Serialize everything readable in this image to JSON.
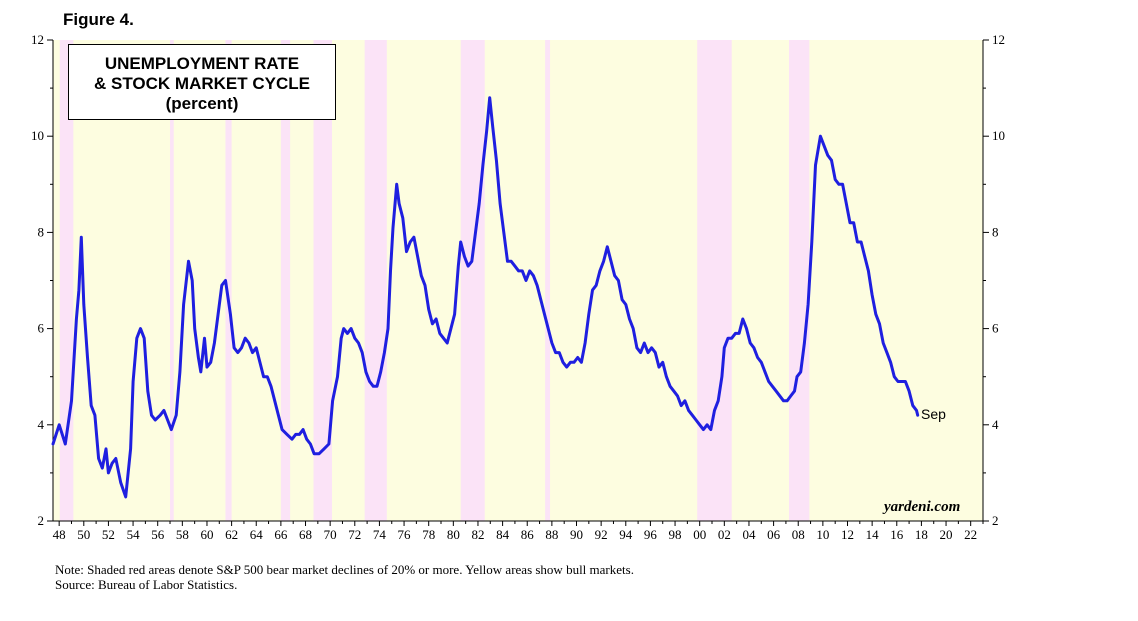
{
  "figure_label": "Figure 4.",
  "legend": {
    "line1": "UNEMPLOYMENT RATE",
    "line2": "& STOCK MARKET CYCLE",
    "line3": "(percent)"
  },
  "brand": "yardeni.com",
  "end_label": "Sep",
  "note": "Note: Shaded red areas denote S&P 500 bear market declines of 20% or more. Yellow areas show bull markets.",
  "source": "Source: Bureau of Labor Statistics.",
  "colors": {
    "line": "#1f1fe0",
    "bull": "#fdfde0",
    "bear": "#fbe3f7"
  },
  "chart_data": {
    "type": "line",
    "x_range": [
      1947.5,
      2023.0
    ],
    "ylim": [
      2,
      12
    ],
    "y_ticks": [
      2,
      4,
      6,
      8,
      10,
      12
    ],
    "x_tick_labels": [
      "48",
      "50",
      "52",
      "54",
      "56",
      "58",
      "60",
      "62",
      "64",
      "66",
      "68",
      "70",
      "72",
      "74",
      "76",
      "78",
      "80",
      "82",
      "84",
      "86",
      "88",
      "90",
      "92",
      "94",
      "96",
      "98",
      "00",
      "02",
      "04",
      "06",
      "08",
      "10",
      "12",
      "14",
      "16",
      "18",
      "20",
      "22"
    ],
    "bear_markets": [
      [
        1948.05,
        1949.15
      ],
      [
        1957.0,
        1957.3
      ],
      [
        1961.5,
        1962.0
      ],
      [
        1966.0,
        1966.75
      ],
      [
        1968.65,
        1970.15
      ],
      [
        1972.8,
        1974.6
      ],
      [
        1980.6,
        1982.55
      ],
      [
        1987.45,
        1987.85
      ],
      [
        1999.8,
        2002.6
      ],
      [
        2007.25,
        2008.9
      ]
    ],
    "series": [
      {
        "values": [
          [
            1947.5,
            3.6
          ],
          [
            1948.0,
            4.0
          ],
          [
            1948.5,
            3.6
          ],
          [
            1949.0,
            4.5
          ],
          [
            1949.4,
            6.2
          ],
          [
            1949.6,
            6.8
          ],
          [
            1949.8,
            7.9
          ],
          [
            1950.0,
            6.5
          ],
          [
            1950.3,
            5.4
          ],
          [
            1950.6,
            4.4
          ],
          [
            1950.9,
            4.2
          ],
          [
            1951.2,
            3.3
          ],
          [
            1951.5,
            3.1
          ],
          [
            1951.8,
            3.5
          ],
          [
            1952.0,
            3.0
          ],
          [
            1952.3,
            3.2
          ],
          [
            1952.6,
            3.3
          ],
          [
            1953.0,
            2.8
          ],
          [
            1953.4,
            2.5
          ],
          [
            1953.8,
            3.5
          ],
          [
            1954.0,
            4.9
          ],
          [
            1954.3,
            5.8
          ],
          [
            1954.6,
            6.0
          ],
          [
            1954.9,
            5.8
          ],
          [
            1955.2,
            4.7
          ],
          [
            1955.5,
            4.2
          ],
          [
            1955.8,
            4.1
          ],
          [
            1956.2,
            4.2
          ],
          [
            1956.5,
            4.3
          ],
          [
            1956.8,
            4.1
          ],
          [
            1957.1,
            3.9
          ],
          [
            1957.5,
            4.2
          ],
          [
            1957.8,
            5.1
          ],
          [
            1958.1,
            6.5
          ],
          [
            1958.5,
            7.4
          ],
          [
            1958.8,
            7.0
          ],
          [
            1959.0,
            6.0
          ],
          [
            1959.3,
            5.4
          ],
          [
            1959.5,
            5.1
          ],
          [
            1959.8,
            5.8
          ],
          [
            1960.0,
            5.2
          ],
          [
            1960.3,
            5.3
          ],
          [
            1960.6,
            5.7
          ],
          [
            1960.9,
            6.3
          ],
          [
            1961.2,
            6.9
          ],
          [
            1961.5,
            7.0
          ],
          [
            1961.9,
            6.3
          ],
          [
            1962.2,
            5.6
          ],
          [
            1962.5,
            5.5
          ],
          [
            1962.8,
            5.6
          ],
          [
            1963.1,
            5.8
          ],
          [
            1963.4,
            5.7
          ],
          [
            1963.7,
            5.5
          ],
          [
            1964.0,
            5.6
          ],
          [
            1964.3,
            5.3
          ],
          [
            1964.6,
            5.0
          ],
          [
            1964.9,
            5.0
          ],
          [
            1965.2,
            4.8
          ],
          [
            1965.5,
            4.5
          ],
          [
            1965.8,
            4.2
          ],
          [
            1966.1,
            3.9
          ],
          [
            1966.5,
            3.8
          ],
          [
            1966.9,
            3.7
          ],
          [
            1967.2,
            3.8
          ],
          [
            1967.5,
            3.8
          ],
          [
            1967.8,
            3.9
          ],
          [
            1968.1,
            3.7
          ],
          [
            1968.4,
            3.6
          ],
          [
            1968.7,
            3.4
          ],
          [
            1969.1,
            3.4
          ],
          [
            1969.5,
            3.5
          ],
          [
            1969.9,
            3.6
          ],
          [
            1970.2,
            4.5
          ],
          [
            1970.6,
            5.0
          ],
          [
            1970.9,
            5.8
          ],
          [
            1971.1,
            6.0
          ],
          [
            1971.4,
            5.9
          ],
          [
            1971.7,
            6.0
          ],
          [
            1972.0,
            5.8
          ],
          [
            1972.3,
            5.7
          ],
          [
            1972.6,
            5.5
          ],
          [
            1972.9,
            5.1
          ],
          [
            1973.2,
            4.9
          ],
          [
            1973.5,
            4.8
          ],
          [
            1973.8,
            4.8
          ],
          [
            1974.1,
            5.1
          ],
          [
            1974.4,
            5.5
          ],
          [
            1974.7,
            6.0
          ],
          [
            1974.9,
            7.2
          ],
          [
            1975.1,
            8.1
          ],
          [
            1975.4,
            9.0
          ],
          [
            1975.6,
            8.6
          ],
          [
            1975.9,
            8.3
          ],
          [
            1976.2,
            7.6
          ],
          [
            1976.5,
            7.8
          ],
          [
            1976.8,
            7.9
          ],
          [
            1977.1,
            7.5
          ],
          [
            1977.4,
            7.1
          ],
          [
            1977.7,
            6.9
          ],
          [
            1978.0,
            6.4
          ],
          [
            1978.3,
            6.1
          ],
          [
            1978.6,
            6.2
          ],
          [
            1978.9,
            5.9
          ],
          [
            1979.2,
            5.8
          ],
          [
            1979.5,
            5.7
          ],
          [
            1979.8,
            6.0
          ],
          [
            1980.1,
            6.3
          ],
          [
            1980.4,
            7.3
          ],
          [
            1980.6,
            7.8
          ],
          [
            1980.9,
            7.5
          ],
          [
            1981.2,
            7.3
          ],
          [
            1981.5,
            7.4
          ],
          [
            1981.8,
            8.0
          ],
          [
            1982.1,
            8.6
          ],
          [
            1982.4,
            9.4
          ],
          [
            1982.7,
            10.1
          ],
          [
            1982.95,
            10.8
          ],
          [
            1983.2,
            10.2
          ],
          [
            1983.5,
            9.5
          ],
          [
            1983.8,
            8.6
          ],
          [
            1984.1,
            8.0
          ],
          [
            1984.4,
            7.4
          ],
          [
            1984.7,
            7.4
          ],
          [
            1985.0,
            7.3
          ],
          [
            1985.3,
            7.2
          ],
          [
            1985.6,
            7.2
          ],
          [
            1985.9,
            7.0
          ],
          [
            1986.2,
            7.2
          ],
          [
            1986.5,
            7.1
          ],
          [
            1986.8,
            6.9
          ],
          [
            1987.1,
            6.6
          ],
          [
            1987.4,
            6.3
          ],
          [
            1987.7,
            6.0
          ],
          [
            1988.0,
            5.7
          ],
          [
            1988.3,
            5.5
          ],
          [
            1988.6,
            5.5
          ],
          [
            1988.9,
            5.3
          ],
          [
            1989.2,
            5.2
          ],
          [
            1989.5,
            5.3
          ],
          [
            1989.8,
            5.3
          ],
          [
            1990.1,
            5.4
          ],
          [
            1990.4,
            5.3
          ],
          [
            1990.7,
            5.7
          ],
          [
            1991.0,
            6.3
          ],
          [
            1991.3,
            6.8
          ],
          [
            1991.6,
            6.9
          ],
          [
            1991.9,
            7.2
          ],
          [
            1992.2,
            7.4
          ],
          [
            1992.5,
            7.7
          ],
          [
            1992.8,
            7.4
          ],
          [
            1993.1,
            7.1
          ],
          [
            1993.4,
            7.0
          ],
          [
            1993.7,
            6.6
          ],
          [
            1994.0,
            6.5
          ],
          [
            1994.3,
            6.2
          ],
          [
            1994.6,
            6.0
          ],
          [
            1994.9,
            5.6
          ],
          [
            1995.2,
            5.5
          ],
          [
            1995.5,
            5.7
          ],
          [
            1995.8,
            5.5
          ],
          [
            1996.1,
            5.6
          ],
          [
            1996.4,
            5.5
          ],
          [
            1996.7,
            5.2
          ],
          [
            1997.0,
            5.3
          ],
          [
            1997.3,
            5.0
          ],
          [
            1997.6,
            4.8
          ],
          [
            1997.9,
            4.7
          ],
          [
            1998.2,
            4.6
          ],
          [
            1998.5,
            4.4
          ],
          [
            1998.8,
            4.5
          ],
          [
            1999.1,
            4.3
          ],
          [
            1999.4,
            4.2
          ],
          [
            1999.7,
            4.1
          ],
          [
            2000.0,
            4.0
          ],
          [
            2000.3,
            3.9
          ],
          [
            2000.6,
            4.0
          ],
          [
            2000.9,
            3.9
          ],
          [
            2001.2,
            4.3
          ],
          [
            2001.5,
            4.5
          ],
          [
            2001.8,
            5.0
          ],
          [
            2002.0,
            5.6
          ],
          [
            2002.3,
            5.8
          ],
          [
            2002.6,
            5.8
          ],
          [
            2002.9,
            5.9
          ],
          [
            2003.2,
            5.9
          ],
          [
            2003.5,
            6.2
          ],
          [
            2003.8,
            6.0
          ],
          [
            2004.1,
            5.7
          ],
          [
            2004.4,
            5.6
          ],
          [
            2004.7,
            5.4
          ],
          [
            2005.0,
            5.3
          ],
          [
            2005.3,
            5.1
          ],
          [
            2005.6,
            4.9
          ],
          [
            2005.9,
            4.8
          ],
          [
            2006.2,
            4.7
          ],
          [
            2006.5,
            4.6
          ],
          [
            2006.8,
            4.5
          ],
          [
            2007.1,
            4.5
          ],
          [
            2007.4,
            4.6
          ],
          [
            2007.7,
            4.7
          ],
          [
            2007.9,
            5.0
          ],
          [
            2008.2,
            5.1
          ],
          [
            2008.5,
            5.7
          ],
          [
            2008.8,
            6.5
          ],
          [
            2009.1,
            7.8
          ],
          [
            2009.4,
            9.4
          ],
          [
            2009.8,
            10.0
          ],
          [
            2010.1,
            9.8
          ],
          [
            2010.4,
            9.6
          ],
          [
            2010.7,
            9.5
          ],
          [
            2011.0,
            9.1
          ],
          [
            2011.3,
            9.0
          ],
          [
            2011.6,
            9.0
          ],
          [
            2011.9,
            8.6
          ],
          [
            2012.2,
            8.2
          ],
          [
            2012.5,
            8.2
          ],
          [
            2012.8,
            7.8
          ],
          [
            2013.1,
            7.8
          ],
          [
            2013.4,
            7.5
          ],
          [
            2013.7,
            7.2
          ],
          [
            2014.0,
            6.7
          ],
          [
            2014.3,
            6.3
          ],
          [
            2014.6,
            6.1
          ],
          [
            2014.9,
            5.7
          ],
          [
            2015.2,
            5.5
          ],
          [
            2015.5,
            5.3
          ],
          [
            2015.8,
            5.0
          ],
          [
            2016.1,
            4.9
          ],
          [
            2016.4,
            4.9
          ],
          [
            2016.7,
            4.9
          ],
          [
            2017.0,
            4.7
          ],
          [
            2017.3,
            4.4
          ],
          [
            2017.6,
            4.3
          ],
          [
            2017.7,
            4.2
          ]
        ]
      }
    ]
  }
}
